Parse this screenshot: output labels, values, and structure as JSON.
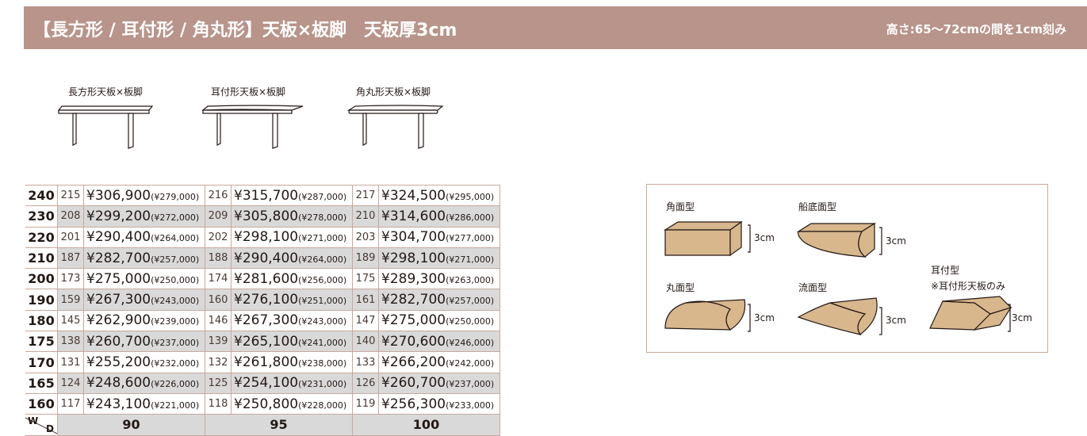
{
  "header": {
    "title": "【長方形 / 耳付形 / 角丸形】天板×板脚　天板厚3cm",
    "note": "高さ:65〜72cmの間を1cm刻み"
  },
  "illustrations": [
    "長方形天板×板脚",
    "耳付形天板×板脚",
    "角丸形天板×板脚"
  ],
  "table": {
    "rows": [
      {
        "width": "240",
        "cells": [
          [
            "215",
            "¥306,900",
            "(¥279,000)"
          ],
          [
            "216",
            "¥315,700",
            "(¥287,000)"
          ],
          [
            "217",
            "¥324,500",
            "(¥295,000)"
          ]
        ]
      },
      {
        "width": "230",
        "cells": [
          [
            "208",
            "¥299,200",
            "(¥272,000)"
          ],
          [
            "209",
            "¥305,800",
            "(¥278,000)"
          ],
          [
            "210",
            "¥314,600",
            "(¥286,000)"
          ]
        ]
      },
      {
        "width": "220",
        "cells": [
          [
            "201",
            "¥290,400",
            "(¥264,000)"
          ],
          [
            "202",
            "¥298,100",
            "(¥271,000)"
          ],
          [
            "203",
            "¥304,700",
            "(¥277,000)"
          ]
        ]
      },
      {
        "width": "210",
        "cells": [
          [
            "187",
            "¥282,700",
            "(¥257,000)"
          ],
          [
            "188",
            "¥290,400",
            "(¥264,000)"
          ],
          [
            "189",
            "¥298,100",
            "(¥271,000)"
          ]
        ]
      },
      {
        "width": "200",
        "cells": [
          [
            "173",
            "¥275,000",
            "(¥250,000)"
          ],
          [
            "174",
            "¥281,600",
            "(¥256,000)"
          ],
          [
            "175",
            "¥289,300",
            "(¥263,000)"
          ]
        ]
      },
      {
        "width": "190",
        "cells": [
          [
            "159",
            "¥267,300",
            "(¥243,000)"
          ],
          [
            "160",
            "¥276,100",
            "(¥251,000)"
          ],
          [
            "161",
            "¥282,700",
            "(¥257,000)"
          ]
        ]
      },
      {
        "width": "180",
        "cells": [
          [
            "145",
            "¥262,900",
            "(¥239,000)"
          ],
          [
            "146",
            "¥267,300",
            "(¥243,000)"
          ],
          [
            "147",
            "¥275,000",
            "(¥250,000)"
          ]
        ]
      },
      {
        "width": "175",
        "cells": [
          [
            "138",
            "¥260,700",
            "(¥237,000)"
          ],
          [
            "139",
            "¥265,100",
            "(¥241,000)"
          ],
          [
            "140",
            "¥270,600",
            "(¥246,000)"
          ]
        ]
      },
      {
        "width": "170",
        "cells": [
          [
            "131",
            "¥255,200",
            "(¥232,000)"
          ],
          [
            "132",
            "¥261,800",
            "(¥238,000)"
          ],
          [
            "133",
            "¥266,200",
            "(¥242,000)"
          ]
        ]
      },
      {
        "width": "165",
        "cells": [
          [
            "124",
            "¥248,600",
            "(¥226,000)"
          ],
          [
            "125",
            "¥254,100",
            "(¥231,000)"
          ],
          [
            "126",
            "¥260,700",
            "(¥237,000)"
          ]
        ]
      },
      {
        "width": "160",
        "cells": [
          [
            "117",
            "¥243,100",
            "(¥221,000)"
          ],
          [
            "118",
            "¥250,800",
            "(¥228,000)"
          ],
          [
            "119",
            "¥256,300",
            "(¥233,000)"
          ]
        ]
      }
    ],
    "corner": {
      "w": "W",
      "d": "D"
    },
    "depths": [
      "90",
      "95",
      "100"
    ]
  },
  "profiles": [
    {
      "name": "角面型",
      "thickness": "3cm"
    },
    {
      "name": "船底面型",
      "thickness": "3cm"
    },
    {
      "name": "丸面型",
      "thickness": "3cm"
    },
    {
      "name": "流面型",
      "thickness": "3cm"
    },
    {
      "name": "耳付型",
      "note": "※耳付形天板のみ",
      "thickness": "3cm"
    }
  ]
}
